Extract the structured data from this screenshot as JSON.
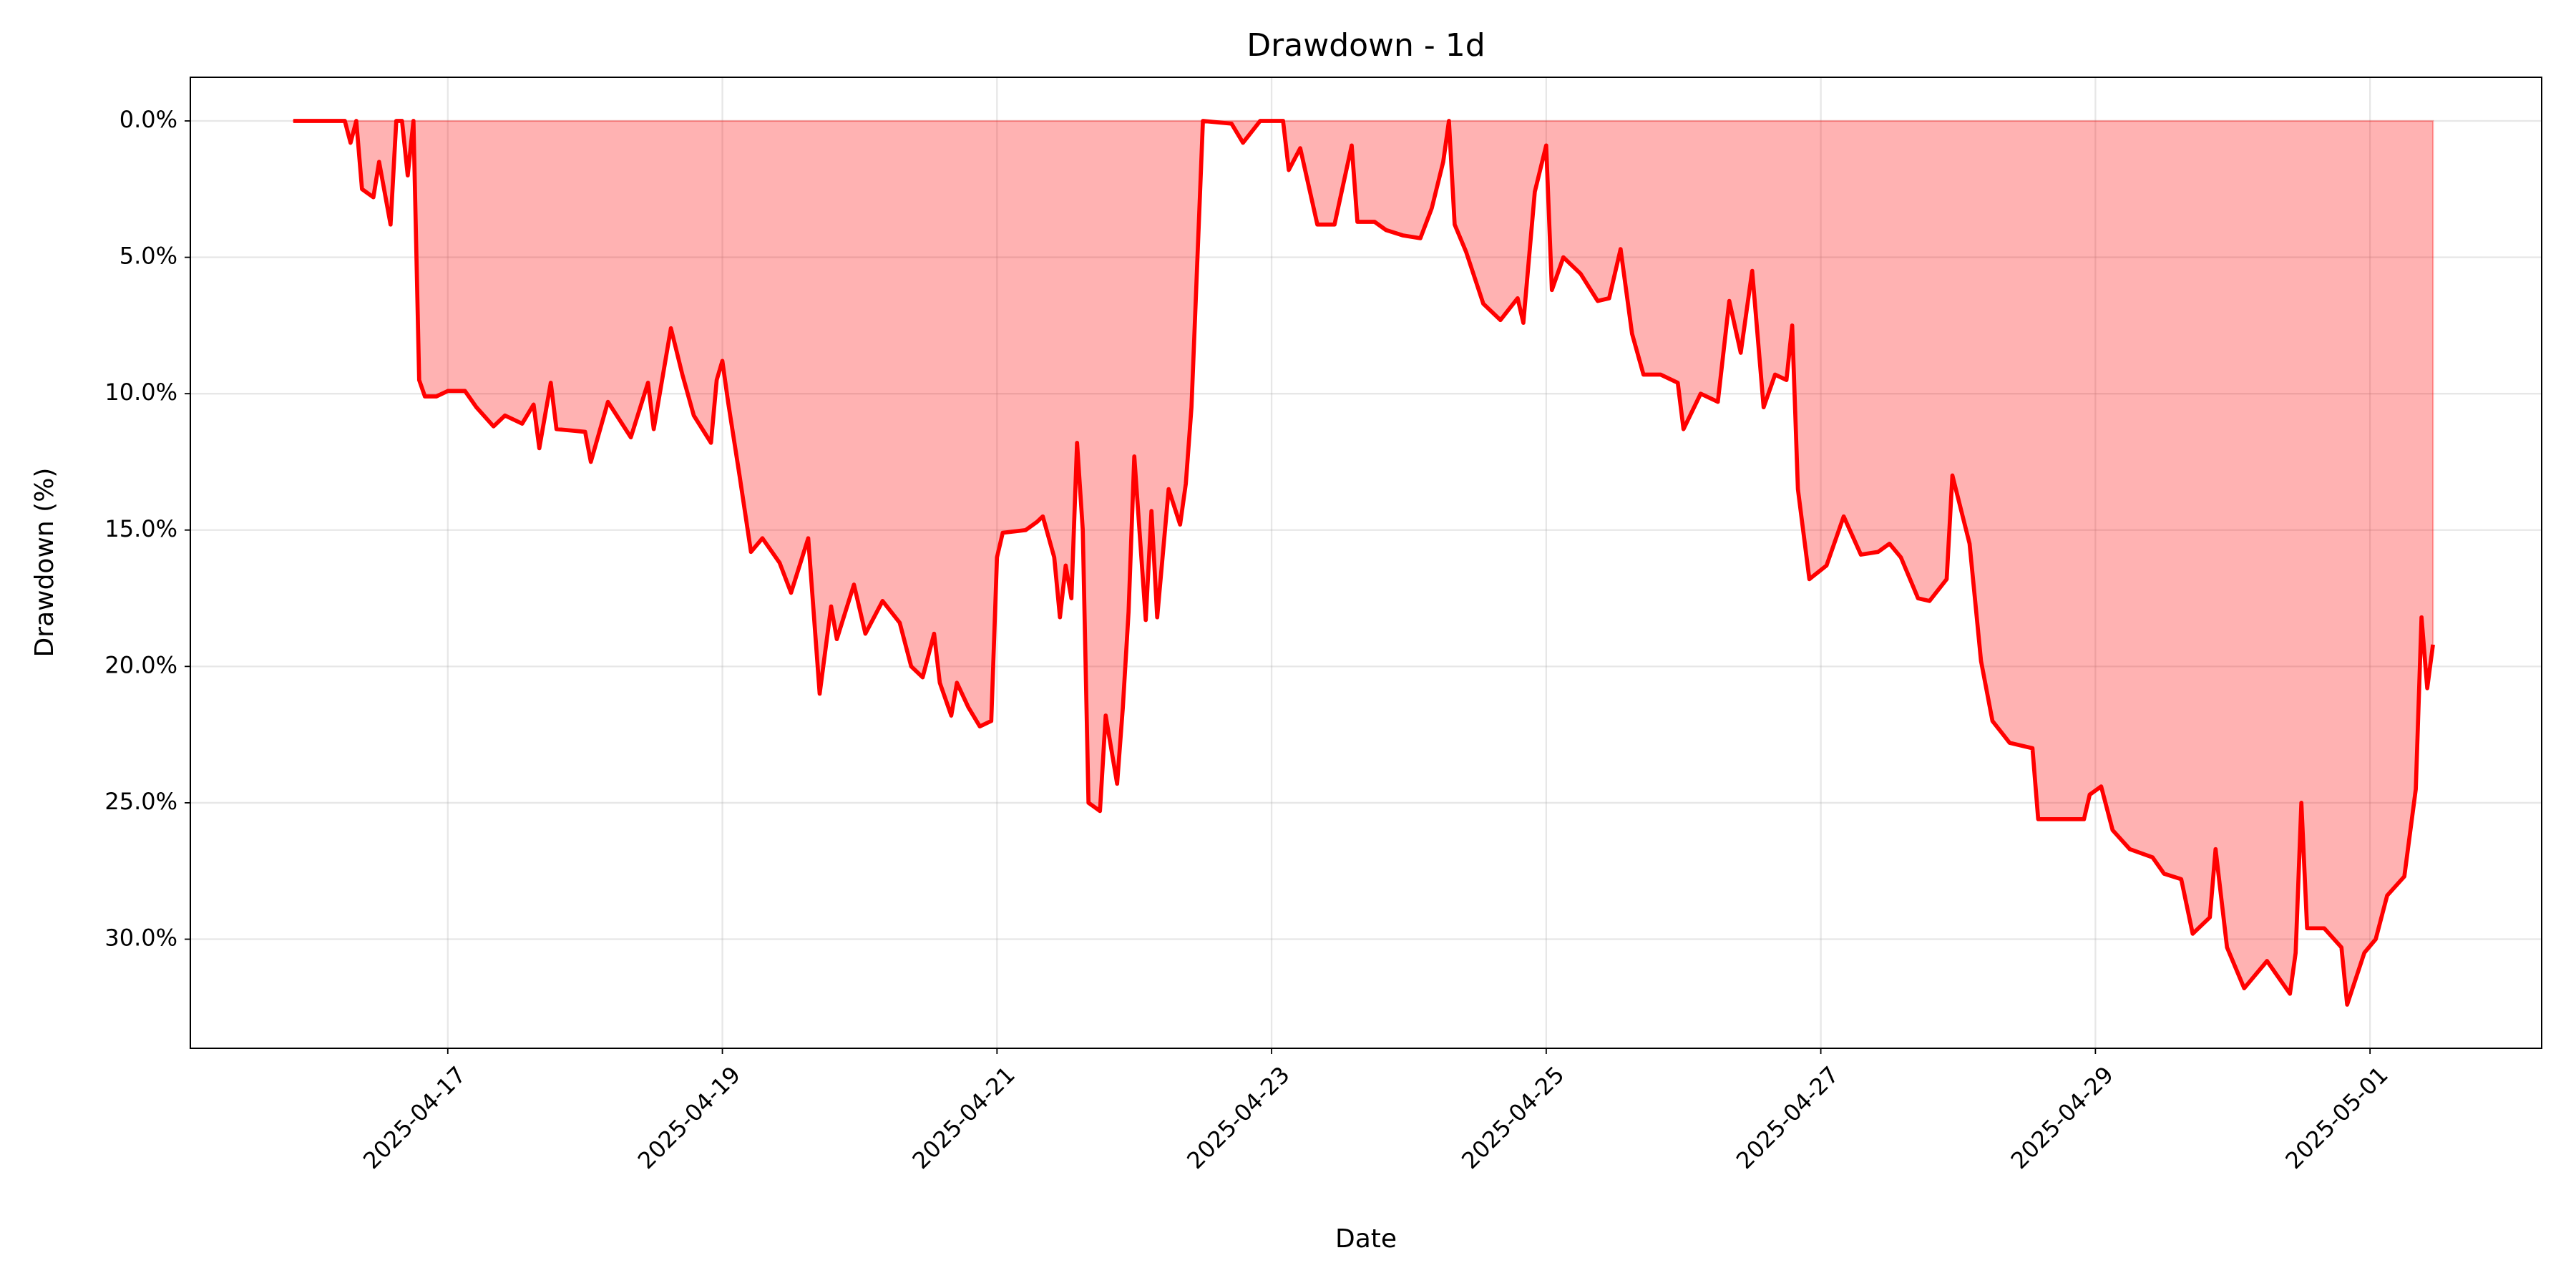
{
  "chart_data": {
    "type": "area",
    "title": "Drawdown - 1d",
    "xlabel": "Date",
    "ylabel": "Drawdown (%)",
    "color": "#ff0000",
    "fill_opacity": 0.3,
    "grid": true,
    "y_inverted": true,
    "xlim": [
      "2025-04-15 03:00",
      "2025-05-02 06:00"
    ],
    "xticks": [
      "2025-04-17",
      "2025-04-19",
      "2025-04-21",
      "2025-04-23",
      "2025-04-25",
      "2025-04-27",
      "2025-04-29",
      "2025-05-01"
    ],
    "ylim": [
      -1.6,
      34.0
    ],
    "yticks": [
      {
        "value": 0,
        "label": "0.0%"
      },
      {
        "value": 5,
        "label": "5.0%"
      },
      {
        "value": 10,
        "label": "10.0%"
      },
      {
        "value": 15,
        "label": "15.0%"
      },
      {
        "value": 20,
        "label": "20.0%"
      },
      {
        "value": 25,
        "label": "25.0%"
      },
      {
        "value": 30,
        "label": "30.0%"
      }
    ],
    "x": [
      "2025-04-15 21:00",
      "2025-04-16 06:00",
      "2025-04-16 07:00",
      "2025-04-16 08:00",
      "2025-04-16 09:00",
      "2025-04-16 11:00",
      "2025-04-16 12:00",
      "2025-04-16 14:00",
      "2025-04-16 15:00",
      "2025-04-16 16:00",
      "2025-04-16 17:00",
      "2025-04-16 18:00",
      "2025-04-16 19:00",
      "2025-04-16 20:00",
      "2025-04-16 22:00",
      "2025-04-17 00:00",
      "2025-04-17 03:00",
      "2025-04-17 05:00",
      "2025-04-17 08:00",
      "2025-04-17 10:00",
      "2025-04-17 13:00",
      "2025-04-17 15:00",
      "2025-04-17 16:00",
      "2025-04-17 18:00",
      "2025-04-17 19:00",
      "2025-04-18 00:00",
      "2025-04-18 01:00",
      "2025-04-18 04:00",
      "2025-04-18 08:00",
      "2025-04-18 11:00",
      "2025-04-18 12:00",
      "2025-04-18 15:00",
      "2025-04-18 17:00",
      "2025-04-18 19:00",
      "2025-04-18 22:00",
      "2025-04-18 23:00",
      "2025-04-19 00:00",
      "2025-04-19 01:00",
      "2025-04-19 03:00",
      "2025-04-19 05:00",
      "2025-04-19 07:00",
      "2025-04-19 10:00",
      "2025-04-19 12:00",
      "2025-04-19 15:00",
      "2025-04-19 17:00",
      "2025-04-19 19:00",
      "2025-04-19 20:00",
      "2025-04-19 23:00",
      "2025-04-20 01:00",
      "2025-04-20 04:00",
      "2025-04-20 07:00",
      "2025-04-20 09:00",
      "2025-04-20 11:00",
      "2025-04-20 13:00",
      "2025-04-20 14:00",
      "2025-04-20 16:00",
      "2025-04-20 17:00",
      "2025-04-20 19:00",
      "2025-04-20 21:00",
      "2025-04-20 23:00",
      "2025-04-21 00:00",
      "2025-04-21 01:00",
      "2025-04-21 05:00",
      "2025-04-21 07:00",
      "2025-04-21 08:00",
      "2025-04-21 10:00",
      "2025-04-21 11:00",
      "2025-04-21 12:00",
      "2025-04-21 13:00",
      "2025-04-21 14:00",
      "2025-04-21 15:00",
      "2025-04-21 16:00",
      "2025-04-21 18:00",
      "2025-04-21 19:00",
      "2025-04-21 21:00",
      "2025-04-21 22:00",
      "2025-04-21 23:00",
      "2025-04-22 00:00",
      "2025-04-22 02:00",
      "2025-04-22 03:00",
      "2025-04-22 04:00",
      "2025-04-22 06:00",
      "2025-04-22 08:00",
      "2025-04-22 09:00",
      "2025-04-22 10:00",
      "2025-04-22 12:00",
      "2025-04-22 17:00",
      "2025-04-22 19:00",
      "2025-04-22 22:00",
      "2025-04-23 02:00",
      "2025-04-23 03:00",
      "2025-04-23 05:00",
      "2025-04-23 08:00",
      "2025-04-23 11:00",
      "2025-04-23 14:00",
      "2025-04-23 15:00",
      "2025-04-23 18:00",
      "2025-04-23 20:00",
      "2025-04-23 23:00",
      "2025-04-24 02:00",
      "2025-04-24 04:00",
      "2025-04-24 06:00",
      "2025-04-24 07:00",
      "2025-04-24 08:00",
      "2025-04-24 10:00",
      "2025-04-24 13:00",
      "2025-04-24 16:00",
      "2025-04-24 19:00",
      "2025-04-24 20:00",
      "2025-04-24 22:00",
      "2025-04-25 00:00",
      "2025-04-25 01:00",
      "2025-04-25 03:00",
      "2025-04-25 06:00",
      "2025-04-25 09:00",
      "2025-04-25 11:00",
      "2025-04-25 13:00",
      "2025-04-25 15:00",
      "2025-04-25 17:00",
      "2025-04-25 20:00",
      "2025-04-25 23:00",
      "2025-04-26 00:00",
      "2025-04-26 03:00",
      "2025-04-26 06:00",
      "2025-04-26 08:00",
      "2025-04-26 10:00",
      "2025-04-26 12:00",
      "2025-04-26 14:00",
      "2025-04-26 16:00",
      "2025-04-26 18:00",
      "2025-04-26 19:00",
      "2025-04-26 20:00",
      "2025-04-26 22:00",
      "2025-04-27 01:00",
      "2025-04-27 04:00",
      "2025-04-27 07:00",
      "2025-04-27 10:00",
      "2025-04-27 12:00",
      "2025-04-27 14:00",
      "2025-04-27 17:00",
      "2025-04-27 19:00",
      "2025-04-27 22:00",
      "2025-04-27 23:00",
      "2025-04-28 02:00",
      "2025-04-28 04:00",
      "2025-04-28 06:00",
      "2025-04-28 09:00",
      "2025-04-28 13:00",
      "2025-04-28 14:00",
      "2025-04-28 22:00",
      "2025-04-28 23:00",
      "2025-04-29 01:00",
      "2025-04-29 03:00",
      "2025-04-29 06:00",
      "2025-04-29 10:00",
      "2025-04-29 12:00",
      "2025-04-29 15:00",
      "2025-04-29 17:00",
      "2025-04-29 20:00",
      "2025-04-29 21:00",
      "2025-04-29 23:00",
      "2025-04-30 02:00",
      "2025-04-30 06:00",
      "2025-04-30 10:00",
      "2025-04-30 11:00",
      "2025-04-30 12:00",
      "2025-04-30 13:00",
      "2025-04-30 16:00",
      "2025-04-30 19:00",
      "2025-04-30 20:00",
      "2025-04-30 23:00",
      "2025-05-01 01:00",
      "2025-05-01 03:00",
      "2025-05-01 06:00",
      "2025-05-01 08:00",
      "2025-05-01 09:00",
      "2025-05-01 10:00",
      "2025-05-01 11:00"
    ],
    "values": [
      0,
      0,
      0.8,
      0,
      2.5,
      2.8,
      1.5,
      3.8,
      0,
      0,
      2.0,
      0,
      9.5,
      10.1,
      10.1,
      9.9,
      9.9,
      10.5,
      11.2,
      10.8,
      11.1,
      10.4,
      12.0,
      9.6,
      11.3,
      11.4,
      12.5,
      10.3,
      11.6,
      9.6,
      11.3,
      7.6,
      9.3,
      10.8,
      11.8,
      9.5,
      8.8,
      10.3,
      13.0,
      15.8,
      15.3,
      16.2,
      17.3,
      15.3,
      21.0,
      17.8,
      19.0,
      17.0,
      18.8,
      17.6,
      18.4,
      20.0,
      20.4,
      18.8,
      20.6,
      21.8,
      20.6,
      21.5,
      22.2,
      22.0,
      16.0,
      15.1,
      15.0,
      14.7,
      14.5,
      16.0,
      18.2,
      16.3,
      17.5,
      11.8,
      15.0,
      25.0,
      25.3,
      21.8,
      24.3,
      21.5,
      18.0,
      12.3,
      18.3,
      14.3,
      18.2,
      13.5,
      14.8,
      13.3,
      10.5,
      0,
      0.1,
      0.8,
      0,
      0,
      1.8,
      1.0,
      3.8,
      3.8,
      0.9,
      3.7,
      3.7,
      4.0,
      4.2,
      4.3,
      3.2,
      1.5,
      0,
      3.8,
      4.8,
      6.7,
      7.3,
      6.5,
      7.4,
      2.6,
      0.9,
      6.2,
      5.0,
      5.6,
      6.6,
      6.5,
      4.7,
      7.8,
      9.3,
      9.3,
      9.6,
      11.3,
      10.0,
      10.3,
      6.6,
      8.5,
      5.5,
      10.5,
      9.3,
      9.5,
      7.5,
      13.5,
      16.8,
      16.3,
      14.5,
      15.9,
      15.8,
      15.5,
      16.0,
      17.5,
      17.6,
      16.8,
      13.0,
      15.5,
      19.8,
      22.0,
      22.8,
      23.0,
      25.6,
      25.6,
      24.7,
      24.4,
      26.0,
      26.7,
      27.0,
      27.6,
      27.8,
      29.8,
      29.2,
      26.7,
      30.3,
      31.8,
      30.8,
      32.0,
      30.5,
      25.0,
      29.6,
      29.6,
      30.3,
      32.4,
      30.5,
      30.0,
      28.4,
      27.7,
      24.5,
      18.2,
      20.8,
      19.2
    ]
  }
}
